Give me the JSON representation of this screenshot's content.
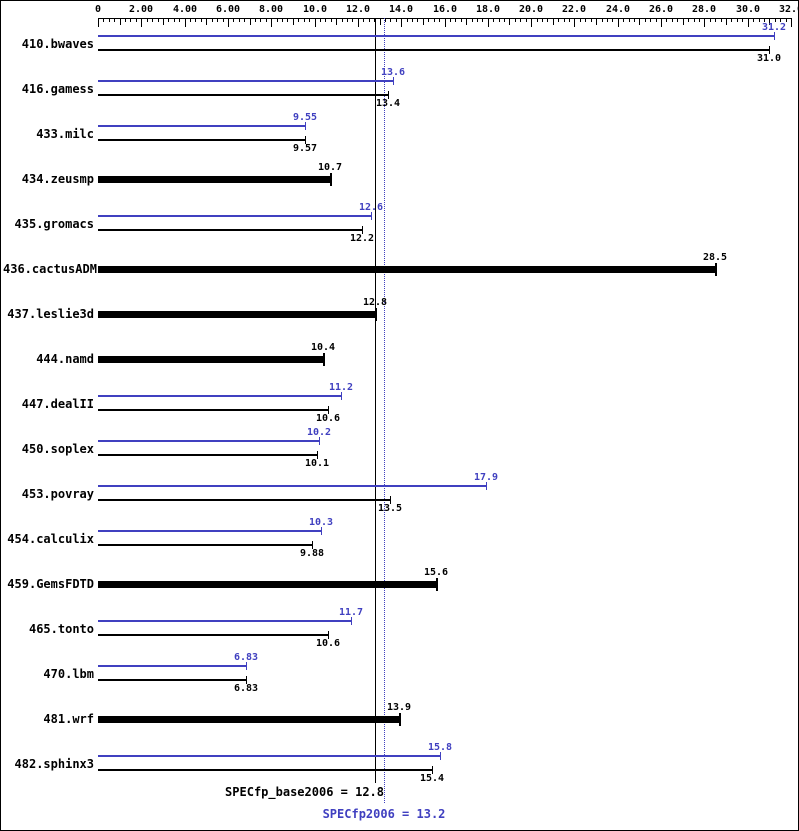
{
  "colors": {
    "peak_blue": "#4040c0",
    "base_black": "#000000",
    "background": "#ffffff"
  },
  "footer": {
    "base_label": "SPECfp_base2006 = 12.8",
    "peak_label": "SPECfp2006 = 13.2"
  },
  "chart_data": {
    "type": "bar",
    "orientation": "horizontal",
    "xlim": [
      0,
      32
    ],
    "grid": false,
    "legend": "none",
    "x_axis_ticks": [
      {
        "value": 0,
        "label": "0"
      },
      {
        "value": 2,
        "label": "2.00"
      },
      {
        "value": 4,
        "label": "4.00"
      },
      {
        "value": 6,
        "label": "6.00"
      },
      {
        "value": 8,
        "label": "8.00"
      },
      {
        "value": 10,
        "label": "10.0"
      },
      {
        "value": 12,
        "label": "12.0"
      },
      {
        "value": 14,
        "label": "14.0"
      },
      {
        "value": 16,
        "label": "16.0"
      },
      {
        "value": 18,
        "label": "18.0"
      },
      {
        "value": 20,
        "label": "20.0"
      },
      {
        "value": 22,
        "label": "22.0"
      },
      {
        "value": 24,
        "label": "24.0"
      },
      {
        "value": 26,
        "label": "26.0"
      },
      {
        "value": 28,
        "label": "28.0"
      },
      {
        "value": 30,
        "label": "30.0"
      },
      {
        "value": 32,
        "label": "32.0"
      }
    ],
    "reference_lines": [
      {
        "name": "SPECfp_base2006",
        "value": 12.8,
        "style": "solid",
        "color": "#000000"
      },
      {
        "name": "SPECfp2006",
        "value": 13.2,
        "style": "dotted",
        "color": "#4040c0"
      }
    ],
    "benchmarks": [
      {
        "name": "410.bwaves",
        "base_only": false,
        "peak": {
          "value": 31.2,
          "label": "31.2"
        },
        "base": {
          "value": 31.0,
          "label": "31.0"
        }
      },
      {
        "name": "416.gamess",
        "base_only": false,
        "peak": {
          "value": 13.6,
          "label": "13.6"
        },
        "base": {
          "value": 13.4,
          "label": "13.4"
        }
      },
      {
        "name": "433.milc",
        "base_only": false,
        "peak": {
          "value": 9.55,
          "label": "9.55"
        },
        "base": {
          "value": 9.57,
          "label": "9.57"
        }
      },
      {
        "name": "434.zeusmp",
        "base_only": true,
        "base": {
          "value": 10.7,
          "label": "10.7"
        }
      },
      {
        "name": "435.gromacs",
        "base_only": false,
        "peak": {
          "value": 12.6,
          "label": "12.6"
        },
        "base": {
          "value": 12.2,
          "label": "12.2"
        }
      },
      {
        "name": "436.cactusADM",
        "base_only": true,
        "base": {
          "value": 28.5,
          "label": "28.5"
        }
      },
      {
        "name": "437.leslie3d",
        "base_only": true,
        "base": {
          "value": 12.8,
          "label": "12.8"
        }
      },
      {
        "name": "444.namd",
        "base_only": true,
        "base": {
          "value": 10.4,
          "label": "10.4"
        }
      },
      {
        "name": "447.dealII",
        "base_only": false,
        "peak": {
          "value": 11.2,
          "label": "11.2"
        },
        "base": {
          "value": 10.6,
          "label": "10.6"
        }
      },
      {
        "name": "450.soplex",
        "base_only": false,
        "peak": {
          "value": 10.2,
          "label": "10.2"
        },
        "base": {
          "value": 10.1,
          "label": "10.1"
        }
      },
      {
        "name": "453.povray",
        "base_only": false,
        "peak": {
          "value": 17.9,
          "label": "17.9"
        },
        "base": {
          "value": 13.5,
          "label": "13.5"
        }
      },
      {
        "name": "454.calculix",
        "base_only": false,
        "peak": {
          "value": 10.3,
          "label": "10.3"
        },
        "base": {
          "value": 9.88,
          "label": "9.88"
        }
      },
      {
        "name": "459.GemsFDTD",
        "base_only": true,
        "base": {
          "value": 15.6,
          "label": "15.6"
        }
      },
      {
        "name": "465.tonto",
        "base_only": false,
        "peak": {
          "value": 11.7,
          "label": "11.7"
        },
        "base": {
          "value": 10.6,
          "label": "10.6"
        }
      },
      {
        "name": "470.lbm",
        "base_only": false,
        "peak": {
          "value": 6.83,
          "label": "6.83"
        },
        "base": {
          "value": 6.83,
          "label": "6.83"
        }
      },
      {
        "name": "481.wrf",
        "base_only": true,
        "base": {
          "value": 13.9,
          "label": "13.9"
        }
      },
      {
        "name": "482.sphinx3",
        "base_only": false,
        "peak": {
          "value": 15.8,
          "label": "15.8"
        },
        "base": {
          "value": 15.4,
          "label": "15.4"
        }
      }
    ],
    "mean_base": 12.8,
    "mean_peak": 13.2
  }
}
